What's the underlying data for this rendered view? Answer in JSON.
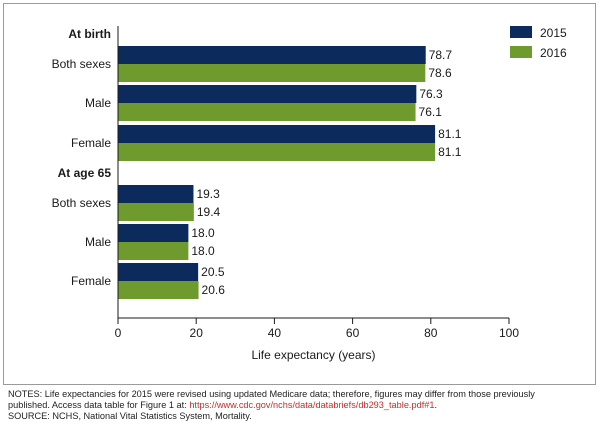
{
  "chart_data": {
    "type": "bar",
    "orientation": "horizontal",
    "groups": [
      {
        "label": "At birth",
        "categories": [
          "Both sexes",
          "Male",
          "Female"
        ],
        "series": [
          {
            "name": "2015",
            "values": [
              78.7,
              76.3,
              81.1
            ],
            "labels": [
              "78.7",
              "76.3",
              "81.1"
            ]
          },
          {
            "name": "2016",
            "values": [
              78.6,
              76.1,
              81.1
            ],
            "labels": [
              "78.6",
              "76.1",
              "81.1"
            ]
          }
        ]
      },
      {
        "label": "At age 65",
        "categories": [
          "Both sexes",
          "Male",
          "Female"
        ],
        "series": [
          {
            "name": "2015",
            "values": [
              19.3,
              18.0,
              20.5
            ],
            "labels": [
              "19.3",
              "18.0",
              "20.5"
            ]
          },
          {
            "name": "2016",
            "values": [
              19.4,
              18.0,
              20.6
            ],
            "labels": [
              "19.4",
              "18.0",
              "20.6"
            ]
          }
        ]
      }
    ],
    "xlabel": "Life expectancy (years)",
    "xlim": [
      0,
      100
    ],
    "xticks": [
      "0",
      "20",
      "40",
      "60",
      "80",
      "100"
    ],
    "legend": {
      "position": "top-right",
      "entries": [
        "2015",
        "2016"
      ]
    },
    "colors": {
      "2015": "#0d2a5c",
      "2016": "#6e9a2e"
    },
    "grid": false
  },
  "notes": {
    "line1": "NOTES: Life expectancies for 2015 were revised using updated Medicare data; therefore, figures may differ from those previously",
    "line2_prefix": "published. Access data table for Figure 1 at: ",
    "line2_link": "https://www.cdc.gov/nchs/data/databriefs/db293_table.pdf#1",
    "line2_suffix": ".",
    "line3": "SOURCE: NCHS, National Vital Statistics System, Mortality."
  }
}
